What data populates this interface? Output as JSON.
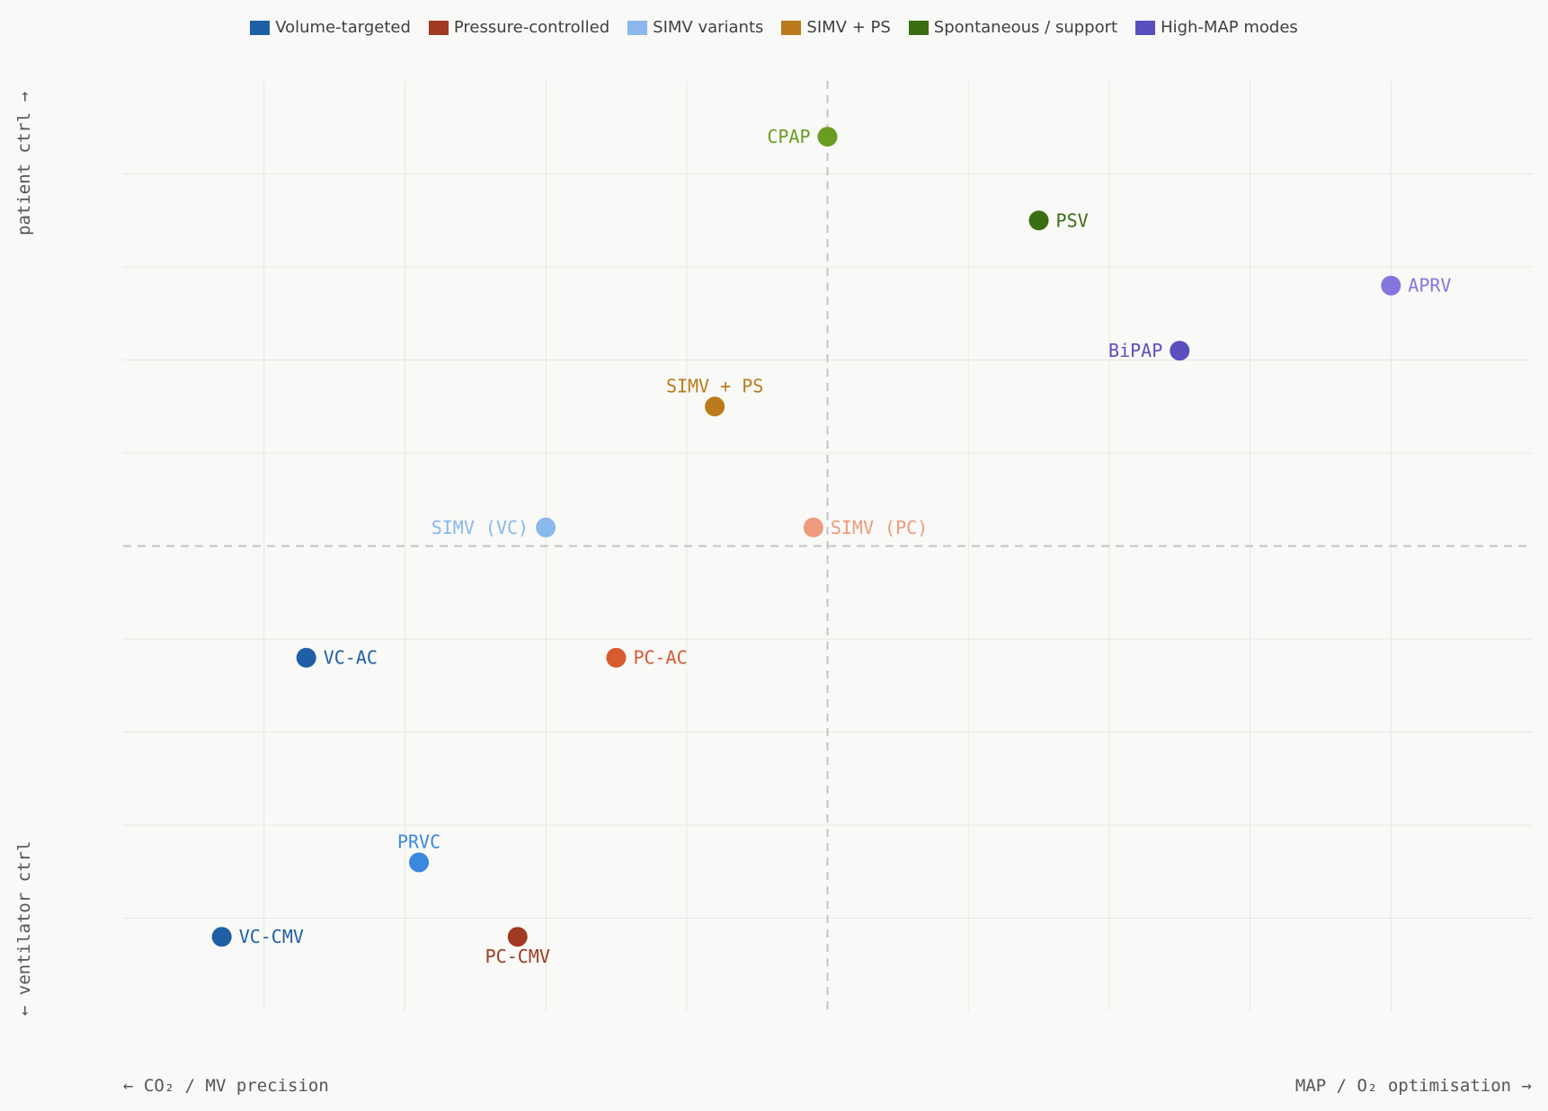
{
  "chart_data": {
    "type": "scatter",
    "title": "",
    "x_axis": {
      "left_label": "← CO₂ / MV precision",
      "right_label": "MAP / O₂ optimisation →",
      "xlim": [
        0,
        10
      ],
      "midline": 5
    },
    "y_axis": {
      "top_label": "patient ctrl →",
      "bottom_label": "← ventilator ctrl",
      "ylim": [
        0,
        10
      ],
      "midline": 5
    },
    "grid": true,
    "legend_position": "top-center",
    "legend": [
      {
        "name": "Volume-targeted",
        "color": "#1f5fa6"
      },
      {
        "name": "Pressure-controlled",
        "color": "#a03a22"
      },
      {
        "name": "SIMV variants",
        "color": "#8ab8ec"
      },
      {
        "name": "SIMV + PS",
        "color": "#bb7a1c"
      },
      {
        "name": "Spontaneous / support",
        "color": "#3a6e12"
      },
      {
        "name": "High-MAP modes",
        "color": "#5a4fbf"
      }
    ],
    "points": [
      {
        "label": "CPAP",
        "x": 5.0,
        "y": 9.4,
        "color": "#6a9c20",
        "label_pos": "left"
      },
      {
        "label": "PSV",
        "x": 6.5,
        "y": 8.5,
        "color": "#3a6e12",
        "label_pos": "right"
      },
      {
        "label": "APRV",
        "x": 9.0,
        "y": 7.8,
        "color": "#8377df",
        "label_pos": "right"
      },
      {
        "label": "BiPAP",
        "x": 7.5,
        "y": 7.1,
        "color": "#5a4fbf",
        "label_pos": "left"
      },
      {
        "label": "SIMV + PS",
        "x": 4.2,
        "y": 6.5,
        "color": "#bb7a1c",
        "label_pos": "top"
      },
      {
        "label": "SIMV (VC)",
        "x": 3.0,
        "y": 5.2,
        "color": "#8ab8ec",
        "label_pos": "left"
      },
      {
        "label": "SIMV (PC)",
        "x": 4.9,
        "y": 5.2,
        "color": "#ef9a7c",
        "label_pos": "right"
      },
      {
        "label": "VC-AC",
        "x": 1.3,
        "y": 3.8,
        "color": "#1f5fa6",
        "label_pos": "right"
      },
      {
        "label": "PC-AC",
        "x": 3.5,
        "y": 3.8,
        "color": "#d85a30",
        "label_pos": "right"
      },
      {
        "label": "PRVC",
        "x": 2.1,
        "y": 1.6,
        "color": "#3a88e0",
        "label_pos": "top"
      },
      {
        "label": "VC-CMV",
        "x": 0.7,
        "y": 0.8,
        "color": "#1f5fa6",
        "label_pos": "right"
      },
      {
        "label": "PC-CMV",
        "x": 2.8,
        "y": 0.8,
        "color": "#a03a22",
        "label_pos": "bottom"
      }
    ]
  }
}
